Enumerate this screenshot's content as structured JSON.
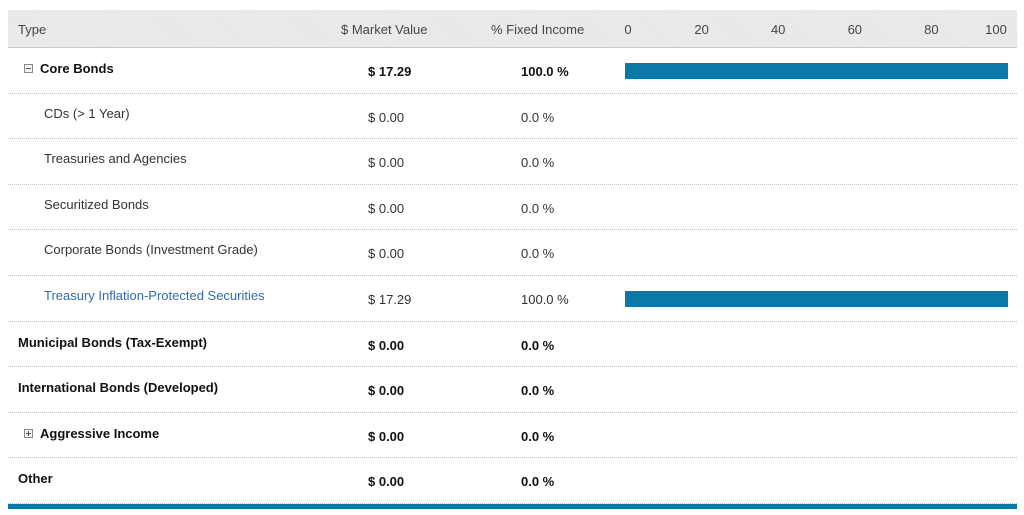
{
  "header": {
    "type_label": "Type",
    "market_value_label": "$ Market Value",
    "fixed_income_label": "% Fixed Income",
    "ticks": [
      0,
      20,
      40,
      60,
      80,
      100
    ]
  },
  "rows": [
    {
      "label": "Core Bonds",
      "market_value": "$ 17.29",
      "fixed_income": "100.0 %",
      "percent": 100,
      "level": 0,
      "bold": true,
      "toggle": "minus",
      "link": false
    },
    {
      "label": "CDs (> 1 Year)",
      "market_value": "$ 0.00",
      "fixed_income": "0.0 %",
      "percent": 0,
      "level": 1,
      "bold": false,
      "toggle": null,
      "link": false
    },
    {
      "label": "Treasuries and Agencies",
      "market_value": "$ 0.00",
      "fixed_income": "0.0 %",
      "percent": 0,
      "level": 1,
      "bold": false,
      "toggle": null,
      "link": false
    },
    {
      "label": "Securitized Bonds",
      "market_value": "$ 0.00",
      "fixed_income": "0.0 %",
      "percent": 0,
      "level": 1,
      "bold": false,
      "toggle": null,
      "link": false
    },
    {
      "label": "Corporate Bonds (Investment Grade)",
      "market_value": "$ 0.00",
      "fixed_income": "0.0 %",
      "percent": 0,
      "level": 1,
      "bold": false,
      "toggle": null,
      "link": false
    },
    {
      "label": "Treasury Inflation-Protected Securities",
      "market_value": "$ 17.29",
      "fixed_income": "100.0 %",
      "percent": 100,
      "level": 1,
      "bold": false,
      "toggle": null,
      "link": true
    },
    {
      "label": "Municipal Bonds (Tax-Exempt)",
      "market_value": "$ 0.00",
      "fixed_income": "0.0 %",
      "percent": 0,
      "level": 0,
      "bold": true,
      "toggle": null,
      "link": false
    },
    {
      "label": "International Bonds (Developed)",
      "market_value": "$ 0.00",
      "fixed_income": "0.0 %",
      "percent": 0,
      "level": 0,
      "bold": true,
      "toggle": null,
      "link": false
    },
    {
      "label": "Aggressive Income",
      "market_value": "$ 0.00",
      "fixed_income": "0.0 %",
      "percent": 0,
      "level": 0,
      "bold": true,
      "toggle": "plus",
      "link": false
    },
    {
      "label": "Other",
      "market_value": "$ 0.00",
      "fixed_income": "0.0 %",
      "percent": 0,
      "level": 0,
      "bold": true,
      "toggle": null,
      "link": false
    }
  ],
  "colors": {
    "bar": "#0a79a8",
    "link": "#2a6ebb",
    "header_bg": "#ececec"
  }
}
